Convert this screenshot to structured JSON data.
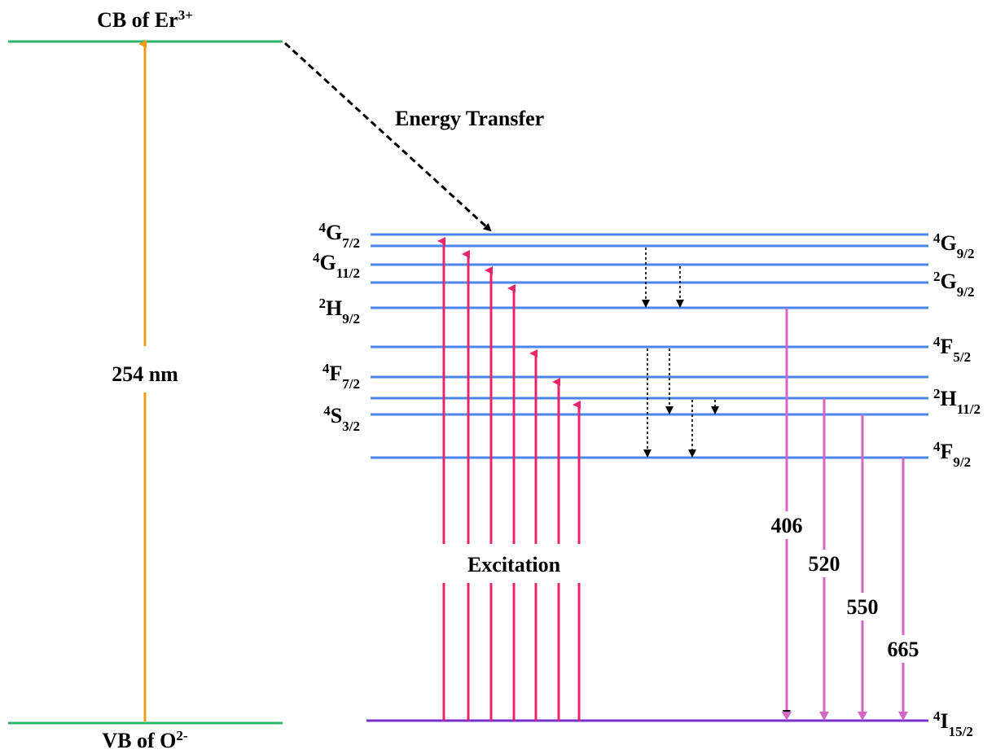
{
  "bands": {
    "cb": {
      "text": "CB of Er",
      "sup": "3+"
    },
    "vb": {
      "text": "VB of O",
      "sup": "2-"
    }
  },
  "pump": "254 nm",
  "energy_transfer": "Energy Transfer",
  "excitation": "Excitation",
  "levels_left": [
    {
      "multiplicity": "4",
      "term": "G",
      "j": "7/2"
    },
    {
      "multiplicity": "4",
      "term": "G",
      "j": "11/2"
    },
    {
      "multiplicity": "2",
      "term": "H",
      "j": "9/2"
    },
    {
      "multiplicity": "4",
      "term": "F",
      "j": "7/2"
    },
    {
      "multiplicity": "4",
      "term": "S",
      "j": "3/2"
    }
  ],
  "levels_right": [
    {
      "multiplicity": "4",
      "term": "G",
      "j": "9/2"
    },
    {
      "multiplicity": "2",
      "term": "G",
      "j": "9/2"
    },
    {
      "multiplicity": "4",
      "term": "F",
      "j": "5/2"
    },
    {
      "multiplicity": "2",
      "term": "H",
      "j": "11/2"
    },
    {
      "multiplicity": "4",
      "term": "F",
      "j": "9/2"
    },
    {
      "multiplicity": "4",
      "term": "I",
      "j": "15/2"
    }
  ],
  "emissions": [
    "406",
    "520",
    "550",
    "665"
  ]
}
